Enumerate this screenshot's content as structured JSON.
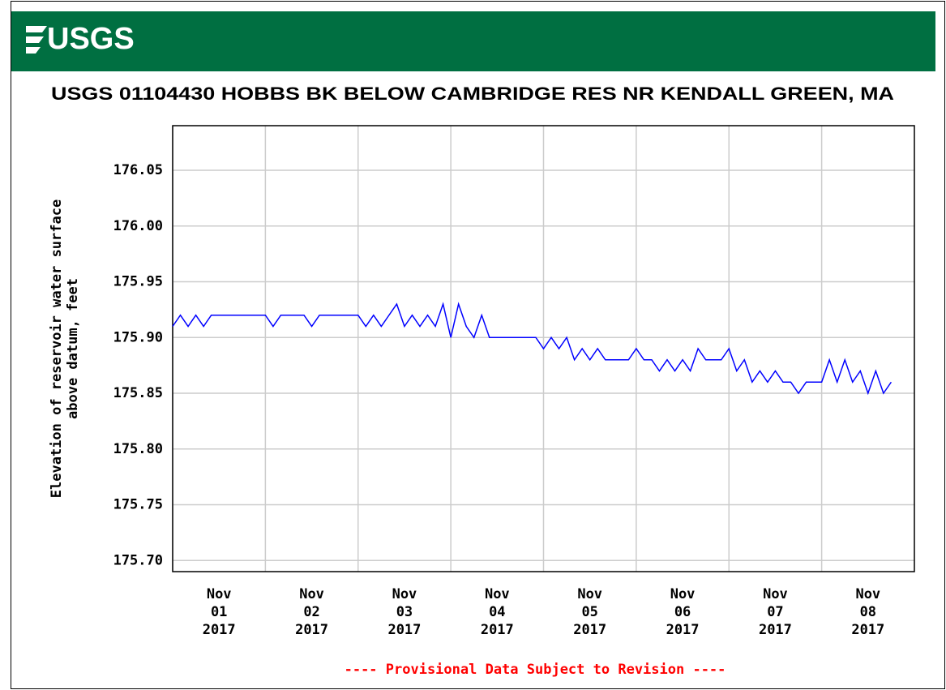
{
  "header": {
    "logo": "USGS"
  },
  "chart_data": {
    "type": "line",
    "title": "USGS 01104430 HOBBS BK BELOW CAMBRIDGE RES NR KENDALL GREEN, MA",
    "ylabel": [
      "Elevation of reservoir water surface",
      "above datum, feet"
    ],
    "footnote": "---- Provisional Data Subject to Revision ----",
    "grid": true,
    "xlim": [
      "2017-11-01 00:00",
      "2017-11-09 00:00"
    ],
    "xticks": [
      {
        "value": "2017-11-01 00:00",
        "label": [
          "Nov",
          "01",
          "2017"
        ]
      },
      {
        "value": "2017-11-02 00:00",
        "label": [
          "Nov",
          "02",
          "2017"
        ]
      },
      {
        "value": "2017-11-03 00:00",
        "label": [
          "Nov",
          "03",
          "2017"
        ]
      },
      {
        "value": "2017-11-04 00:00",
        "label": [
          "Nov",
          "04",
          "2017"
        ]
      },
      {
        "value": "2017-11-05 00:00",
        "label": [
          "Nov",
          "05",
          "2017"
        ]
      },
      {
        "value": "2017-11-06 00:00",
        "label": [
          "Nov",
          "06",
          "2017"
        ]
      },
      {
        "value": "2017-11-07 00:00",
        "label": [
          "Nov",
          "07",
          "2017"
        ]
      },
      {
        "value": "2017-11-08 00:00",
        "label": [
          "Nov",
          "08",
          "2017"
        ]
      }
    ],
    "ylim": [
      175.69,
      176.09
    ],
    "yticks": [
      {
        "value": 175.7,
        "label": "175.70"
      },
      175.75,
      {
        "value": 175.8,
        "label": "175.80"
      },
      175.85,
      {
        "value": 175.9,
        "label": "175.90"
      },
      175.95,
      {
        "value": 176.0,
        "label": "176.00"
      },
      176.05
    ],
    "x": [
      "2017-11-01 00:00",
      "2017-11-01 02:00",
      "2017-11-01 04:00",
      "2017-11-01 06:00",
      "2017-11-01 08:00",
      "2017-11-01 10:00",
      "2017-11-01 12:00",
      "2017-11-01 14:00",
      "2017-11-01 16:00",
      "2017-11-01 18:00",
      "2017-11-01 20:00",
      "2017-11-01 22:00",
      "2017-11-02 00:00",
      "2017-11-02 02:00",
      "2017-11-02 04:00",
      "2017-11-02 06:00",
      "2017-11-02 08:00",
      "2017-11-02 10:00",
      "2017-11-02 12:00",
      "2017-11-02 14:00",
      "2017-11-02 16:00",
      "2017-11-02 18:00",
      "2017-11-02 20:00",
      "2017-11-02 22:00",
      "2017-11-03 00:00",
      "2017-11-03 02:00",
      "2017-11-03 04:00",
      "2017-11-03 06:00",
      "2017-11-03 08:00",
      "2017-11-03 10:00",
      "2017-11-03 12:00",
      "2017-11-03 14:00",
      "2017-11-03 16:00",
      "2017-11-03 18:00",
      "2017-11-03 20:00",
      "2017-11-03 22:00",
      "2017-11-04 00:00",
      "2017-11-04 02:00",
      "2017-11-04 04:00",
      "2017-11-04 06:00",
      "2017-11-04 08:00",
      "2017-11-04 10:00",
      "2017-11-04 12:00",
      "2017-11-04 14:00",
      "2017-11-04 16:00",
      "2017-11-04 18:00",
      "2017-11-04 20:00",
      "2017-11-04 22:00",
      "2017-11-05 00:00",
      "2017-11-05 02:00",
      "2017-11-05 04:00",
      "2017-11-05 06:00",
      "2017-11-05 08:00",
      "2017-11-05 10:00",
      "2017-11-05 12:00",
      "2017-11-05 14:00",
      "2017-11-05 16:00",
      "2017-11-05 18:00",
      "2017-11-05 20:00",
      "2017-11-05 22:00",
      "2017-11-06 00:00",
      "2017-11-06 02:00",
      "2017-11-06 04:00",
      "2017-11-06 06:00",
      "2017-11-06 08:00",
      "2017-11-06 10:00",
      "2017-11-06 12:00",
      "2017-11-06 14:00",
      "2017-11-06 16:00",
      "2017-11-06 18:00",
      "2017-11-06 20:00",
      "2017-11-06 22:00",
      "2017-11-07 00:00",
      "2017-11-07 02:00",
      "2017-11-07 04:00",
      "2017-11-07 06:00",
      "2017-11-07 08:00",
      "2017-11-07 10:00",
      "2017-11-07 12:00",
      "2017-11-07 14:00",
      "2017-11-07 16:00",
      "2017-11-07 18:00",
      "2017-11-07 20:00",
      "2017-11-07 22:00",
      "2017-11-08 00:00",
      "2017-11-08 02:00",
      "2017-11-08 04:00",
      "2017-11-08 06:00",
      "2017-11-08 08:00",
      "2017-11-08 10:00",
      "2017-11-08 12:00",
      "2017-11-08 14:00",
      "2017-11-08 16:00",
      "2017-11-08 18:00"
    ],
    "series": [
      {
        "name": "Elevation",
        "color": "#0000ff",
        "values": [
          175.91,
          175.92,
          175.91,
          175.92,
          175.91,
          175.92,
          175.92,
          175.92,
          175.92,
          175.92,
          175.92,
          175.92,
          175.92,
          175.91,
          175.92,
          175.92,
          175.92,
          175.92,
          175.91,
          175.92,
          175.92,
          175.92,
          175.92,
          175.92,
          175.92,
          175.91,
          175.92,
          175.91,
          175.92,
          175.93,
          175.91,
          175.92,
          175.91,
          175.92,
          175.91,
          175.93,
          175.9,
          175.93,
          175.91,
          175.9,
          175.92,
          175.9,
          175.9,
          175.9,
          175.9,
          175.9,
          175.9,
          175.9,
          175.89,
          175.9,
          175.89,
          175.9,
          175.88,
          175.89,
          175.88,
          175.89,
          175.88,
          175.88,
          175.88,
          175.88,
          175.89,
          175.88,
          175.88,
          175.87,
          175.88,
          175.87,
          175.88,
          175.87,
          175.89,
          175.88,
          175.88,
          175.88,
          175.89,
          175.87,
          175.88,
          175.86,
          175.87,
          175.86,
          175.87,
          175.86,
          175.86,
          175.85,
          175.86,
          175.86,
          175.86,
          175.88,
          175.86,
          175.88,
          175.86,
          175.87,
          175.85,
          175.87,
          175.85,
          175.86
        ]
      }
    ]
  }
}
